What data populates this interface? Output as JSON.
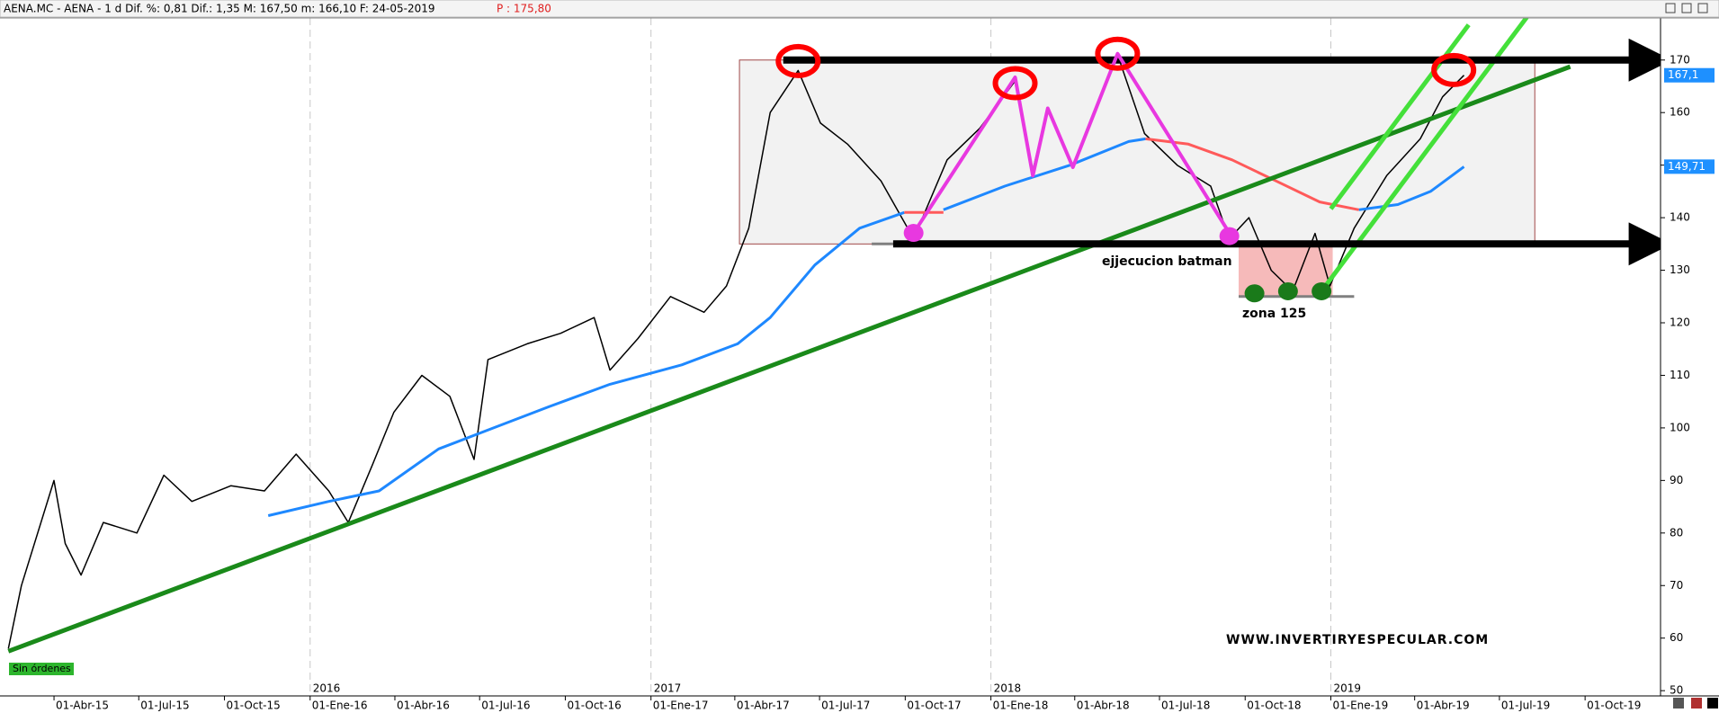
{
  "header": {
    "symbol_info": "AENA.MC - AENA -  1 d Dif. %: 0,81 Dif.: 1,35 M: 167,50 m: 166,10 F: 24-05-2019",
    "price": "P : 175,80"
  },
  "chart_data": {
    "type": "line",
    "xlim": [
      "2015-02-02",
      "2019-12-21"
    ],
    "ylim": [
      49,
      178
    ],
    "yticks": [
      50,
      60,
      70,
      80,
      90,
      100,
      110,
      120,
      130,
      140,
      150,
      160,
      170
    ],
    "xticks": [
      {
        "value": "2015-04-01",
        "label": "01-Abr-15"
      },
      {
        "value": "2015-07-01",
        "label": "01-Jul-15"
      },
      {
        "value": "2015-10-01",
        "label": "01-Oct-15"
      },
      {
        "value": "2016-01-01",
        "label": "01-Ene-16"
      },
      {
        "value": "2016-04-01",
        "label": "01-Abr-16"
      },
      {
        "value": "2016-07-01",
        "label": "01-Jul-16"
      },
      {
        "value": "2016-10-01",
        "label": "01-Oct-16"
      },
      {
        "value": "2017-01-01",
        "label": "01-Ene-17"
      },
      {
        "value": "2017-04-01",
        "label": "01-Abr-17"
      },
      {
        "value": "2017-07-01",
        "label": "01-Jul-17"
      },
      {
        "value": "2017-10-01",
        "label": "01-Oct-17"
      },
      {
        "value": "2018-01-01",
        "label": "01-Ene-18"
      },
      {
        "value": "2018-04-01",
        "label": "01-Abr-18"
      },
      {
        "value": "2018-07-01",
        "label": "01-Jul-18"
      },
      {
        "value": "2018-10-01",
        "label": "01-Oct-18"
      },
      {
        "value": "2019-01-01",
        "label": "01-Ene-19"
      },
      {
        "value": "2019-04-01",
        "label": "01-Abr-19"
      },
      {
        "value": "2019-07-01",
        "label": "01-Jul-19"
      },
      {
        "value": "2019-10-01",
        "label": "01-Oct-19"
      }
    ],
    "year_ticks": [
      {
        "value": "2016-01-01",
        "label": "2016"
      },
      {
        "value": "2017-01-01",
        "label": "2017"
      },
      {
        "value": "2018-01-01",
        "label": "2018"
      },
      {
        "value": "2019-01-01",
        "label": "2019"
      }
    ],
    "series": [
      {
        "color": "#000000",
        "x": [
          "2015-02-11",
          "2015-02-25",
          "2015-04-01",
          "2015-04-13",
          "2015-04-30",
          "2015-05-24",
          "2015-06-29",
          "2015-07-28",
          "2015-08-27",
          "2015-10-08",
          "2015-11-13",
          "2015-12-17",
          "2016-01-21",
          "2016-02-11",
          "2016-03-08",
          "2016-03-31",
          "2016-04-30",
          "2016-05-30",
          "2016-06-25",
          "2016-07-10",
          "2016-08-21",
          "2016-09-26",
          "2016-11-01",
          "2016-11-18",
          "2016-12-18",
          "2017-01-22",
          "2017-02-27",
          "2017-03-23",
          "2017-04-16",
          "2017-05-09",
          "2017-06-08",
          "2017-07-02",
          "2017-07-31",
          "2017-09-05",
          "2017-10-10",
          "2017-11-15",
          "2017-12-20",
          "2018-01-27",
          "2018-02-15",
          "2018-03-03",
          "2018-03-30",
          "2018-04-23",
          "2018-05-17",
          "2018-06-15",
          "2018-07-20",
          "2018-08-25",
          "2018-09-14",
          "2018-10-05",
          "2018-10-29",
          "2018-11-21",
          "2018-12-15",
          "2018-12-31",
          "2019-01-26",
          "2019-03-02",
          "2019-04-07",
          "2019-05-01",
          "2019-05-24"
        ],
        "values": [
          58,
          70,
          90,
          78,
          72,
          82,
          80,
          91,
          86,
          89,
          88,
          95,
          88,
          82,
          93,
          103,
          110,
          106,
          94,
          113,
          116,
          118,
          121,
          111,
          117,
          125,
          122,
          127,
          138,
          160,
          168,
          158,
          154,
          147,
          136,
          151,
          157,
          166,
          149,
          161,
          150,
          160,
          171,
          156,
          150,
          146,
          136,
          140,
          130,
          126,
          137,
          127,
          138,
          148,
          155,
          163,
          167.1
        ]
      },
      {
        "color": "#1e88ff",
        "x": [
          "2015-11-17",
          "2016-01-21",
          "2016-03-15",
          "2016-05-18",
          "2016-07-16",
          "2016-09-13",
          "2016-11-18",
          "2017-02-03",
          "2017-04-04",
          "2017-05-09",
          "2017-06-26",
          "2017-08-13",
          "2017-09-30",
          "2017-10-20",
          "2017-11-11",
          "2018-01-16",
          "2018-03-27",
          "2018-05-29",
          "2018-06-16",
          "2018-10-01",
          "2019-01-31",
          "2019-03-14",
          "2019-04-18",
          "2019-05-24"
        ],
        "values": [
          83.3,
          86,
          88,
          96,
          100,
          104,
          108.3,
          112,
          116,
          121,
          131,
          138,
          141,
          null,
          141.5,
          146,
          150,
          154.5,
          155,
          null,
          141.5,
          142.5,
          145,
          149.71
        ]
      },
      {
        "color": "#ff5a5a",
        "x": [
          "2017-09-30",
          "2017-11-11",
          "2018-01-01",
          "2018-06-16",
          "2018-08-01",
          "2018-09-17",
          "2018-11-03",
          "2018-12-20",
          "2019-01-31"
        ],
        "values": [
          141,
          141,
          null,
          155,
          154,
          151,
          147,
          143,
          141.5
        ]
      }
    ],
    "last_labels": [
      {
        "value": 167.1,
        "label": "167,1"
      },
      {
        "value": 149.71,
        "label": "149,71"
      }
    ],
    "annotations": {
      "rects": [
        {
          "x": [
            "2017-04-06",
            "2019-08-08"
          ],
          "y": [
            135,
            170
          ],
          "fill": "#f2f2f2",
          "stroke": "#a04848"
        },
        {
          "x": [
            "2018-09-24",
            "2019-01-03"
          ],
          "y": [
            125,
            135
          ],
          "fill": "#f6baba",
          "stroke": "none"
        }
      ],
      "arrows": [
        {
          "x": [
            "2017-05-23",
            "2019-12-10"
          ],
          "y": [
            170,
            170
          ]
        },
        {
          "x": [
            "2017-09-18",
            "2019-12-10"
          ],
          "y": [
            135,
            135
          ]
        }
      ],
      "lines": [
        {
          "color": "#1a8a1a",
          "x": [
            "2015-02-11",
            "2019-09-15"
          ],
          "y": [
            57.5,
            168.75
          ]
        },
        {
          "color": "#44e03a",
          "x": [
            "2019-01-01",
            "2019-05-29"
          ],
          "y": [
            141.7,
            176.7
          ]
        },
        {
          "color": "#44e03a",
          "x": [
            "2018-12-22",
            "2019-08-02"
          ],
          "y": [
            126,
            178.75
          ]
        },
        {
          "color": "#808080",
          "x": [
            "2017-08-26",
            "2017-09-18"
          ],
          "y": [
            135,
            135
          ]
        },
        {
          "color": "#808080",
          "x": [
            "2018-09-24",
            "2019-01-26"
          ],
          "y": [
            125,
            125
          ]
        }
      ],
      "pattern": {
        "color": "#e838e0",
        "x": [
          "2017-10-10",
          "2018-01-27",
          "2018-02-15",
          "2018-03-03",
          "2018-03-30",
          "2018-05-17",
          "2018-09-14"
        ],
        "y": [
          137.1,
          166.7,
          148,
          160.8,
          149.6,
          171.2,
          137.1
        ]
      },
      "circles": [
        {
          "x": "2017-06-08",
          "y": 169.8
        },
        {
          "x": "2018-01-27",
          "y": 165.6
        },
        {
          "x": "2018-05-17",
          "y": 171.2
        },
        {
          "x": "2019-05-13",
          "y": 168.1
        }
      ],
      "dots": [
        {
          "x": "2017-10-10",
          "y": 137.1,
          "color": "#e838e0"
        },
        {
          "x": "2018-09-14",
          "y": 136.5,
          "color": "#e838e0"
        },
        {
          "x": "2018-10-11",
          "y": 125.6,
          "color": "#1a7a1a"
        },
        {
          "x": "2018-11-16",
          "y": 126,
          "color": "#1a7a1a"
        },
        {
          "x": "2018-12-22",
          "y": 126,
          "color": "#1a7a1a"
        }
      ]
    },
    "texts": {
      "batman": "ejjecucion batman",
      "zona": "zona 125",
      "site": "WWW.INVERTIRYESPECULAR.COM",
      "status": "Sin órdenes"
    }
  }
}
